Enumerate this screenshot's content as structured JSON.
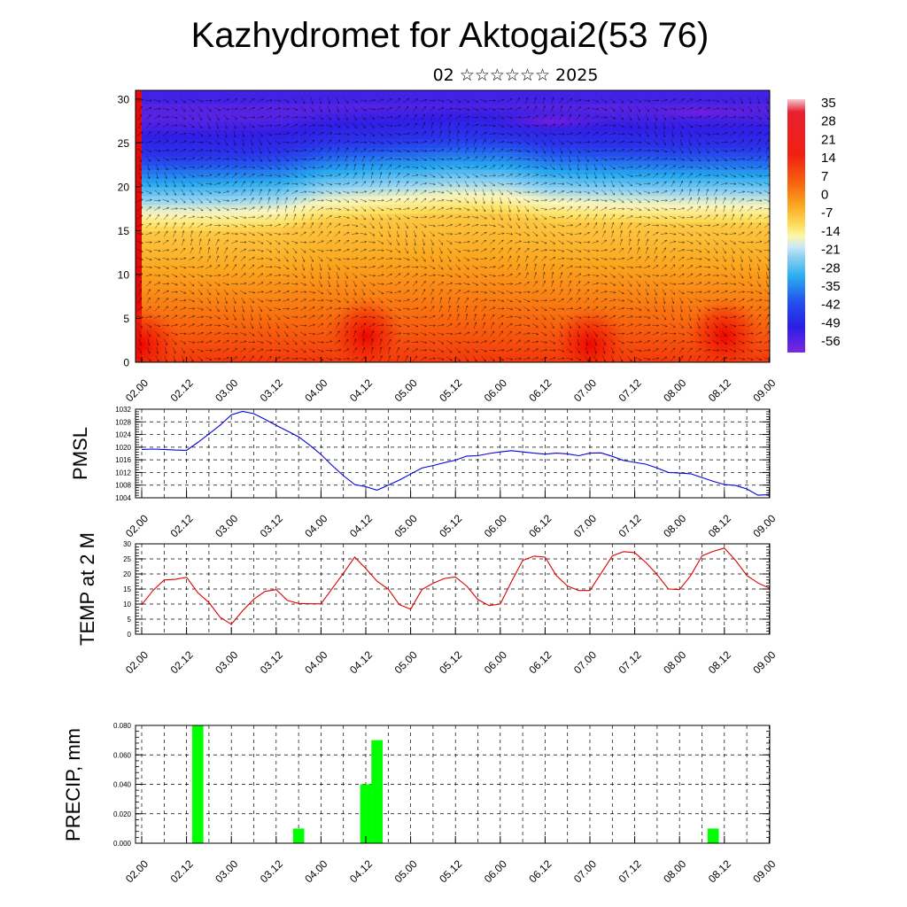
{
  "header": {
    "title": "Kazhydromet for Aktogai2(53 76)",
    "subtitle": "02 ☆☆☆☆☆☆ 2025"
  },
  "colors": {
    "pmsl_line": "#0000dd",
    "temp_line": "#dd0000",
    "precip_bar": "#00ff00",
    "section_cold": "#5a10d8",
    "section_warm": "#f01010"
  },
  "chart_data": [
    {
      "type": "heatmap",
      "title": "",
      "xlabel": "",
      "ylabel": "",
      "x_ticks": [
        "02.00",
        "02.12",
        "03.00",
        "03.12",
        "04.00",
        "04.12",
        "05.00",
        "05.12",
        "06.00",
        "06.12",
        "07.00",
        "07.12",
        "08.00",
        "08.12",
        "09.00"
      ],
      "y_ticks": [
        "0",
        "5",
        "10",
        "15",
        "20",
        "25",
        "30"
      ],
      "ylim": [
        0,
        31
      ],
      "colorbar_ticks": [
        "35",
        "28",
        "21",
        "14",
        "7",
        "0",
        "-7",
        "-14",
        "-21",
        "-28",
        "-35",
        "-42",
        "-49",
        "-56"
      ],
      "colorbar_range": [
        -60,
        38
      ],
      "freezing_level_by_time": [
        14.5,
        14.5,
        14.6,
        14.8,
        15.8,
        16.1,
        16.3,
        16.6,
        16.5,
        15.8,
        15.6,
        15.5,
        15.4,
        15.4,
        15.3
      ],
      "warm_cores": [
        {
          "time": "02.00",
          "height": 2,
          "temp": 21
        },
        {
          "time": "04.12",
          "height": 3,
          "temp": 24
        },
        {
          "time": "07.00",
          "height": 2,
          "temp": 23
        },
        {
          "time": "08.12",
          "height": 3,
          "temp": 24
        }
      ],
      "grid": false,
      "legend": "colorbar-right"
    },
    {
      "type": "line",
      "title": "",
      "ylabel": "PMSL",
      "x_ticks": [
        "02.00",
        "02.12",
        "03.00",
        "03.12",
        "04.00",
        "04.12",
        "05.00",
        "05.12",
        "06.00",
        "06.12",
        "07.00",
        "07.12",
        "08.00",
        "08.12",
        "09.00"
      ],
      "y_ticks": [
        "1004",
        "1008",
        "1012",
        "1016",
        "1020",
        "1024",
        "1028",
        "1032"
      ],
      "ylim": [
        1004,
        1032
      ],
      "x": [
        0,
        3,
        6,
        9,
        12,
        15,
        18,
        21,
        24,
        27,
        30,
        33,
        36,
        39,
        42,
        45,
        48,
        51,
        54,
        57,
        60,
        63,
        66,
        69,
        72,
        75,
        78,
        81,
        84,
        87,
        90,
        93,
        96,
        99,
        102,
        105,
        108,
        111,
        114,
        117,
        120,
        123,
        126,
        129,
        132,
        135,
        138,
        141,
        144,
        147,
        150,
        153,
        156,
        159,
        162,
        165,
        168
      ],
      "values": [
        1019.3,
        1019.4,
        1019.3,
        1019.1,
        1019.0,
        1021.5,
        1024.2,
        1027.0,
        1030.2,
        1031.3,
        1030.6,
        1028.8,
        1026.9,
        1025.1,
        1023.3,
        1020.6,
        1017.7,
        1014.2,
        1011.0,
        1008.2,
        1007.5,
        1006.4,
        1008.0,
        1009.6,
        1011.5,
        1013.4,
        1014.2,
        1015.1,
        1015.9,
        1017.2,
        1017.3,
        1018.0,
        1018.5,
        1018.9,
        1018.5,
        1018.1,
        1017.8,
        1018.1,
        1017.9,
        1017.3,
        1018.1,
        1018.2,
        1017.1,
        1015.8,
        1015.2,
        1014.6,
        1013.4,
        1012.0,
        1011.8,
        1011.6,
        1010.4,
        1009.2,
        1008.2,
        1007.9,
        1006.8,
        1004.8,
        1005.0
      ],
      "grid": true
    },
    {
      "type": "line",
      "title": "",
      "ylabel": "TEMP at 2 M",
      "x_ticks": [
        "02.00",
        "02.12",
        "03.00",
        "03.12",
        "04.00",
        "04.12",
        "05.00",
        "05.12",
        "06.00",
        "06.12",
        "07.00",
        "07.12",
        "08.00",
        "08.12",
        "09.00"
      ],
      "y_ticks": [
        "0",
        "5",
        "10",
        "15",
        "20",
        "25",
        "30"
      ],
      "ylim": [
        0,
        30
      ],
      "x": [
        0,
        3,
        6,
        9,
        12,
        15,
        18,
        21,
        24,
        27,
        30,
        33,
        36,
        39,
        42,
        45,
        48,
        51,
        54,
        57,
        60,
        63,
        66,
        69,
        72,
        75,
        78,
        81,
        84,
        87,
        90,
        93,
        96,
        99,
        102,
        105,
        108,
        111,
        114,
        117,
        120,
        123,
        126,
        129,
        132,
        135,
        138,
        141,
        144,
        147,
        150,
        153,
        156,
        159,
        162,
        165,
        168
      ],
      "values": [
        9.8,
        14.5,
        18.0,
        18.2,
        18.9,
        13.8,
        10.5,
        5.6,
        3.3,
        7.8,
        11.6,
        14.2,
        14.8,
        11.2,
        10.2,
        10.1,
        10.1,
        15.2,
        20.2,
        25.6,
        21.8,
        17.6,
        15.0,
        9.8,
        8.3,
        14.8,
        16.9,
        18.5,
        19.0,
        16.0,
        11.5,
        9.5,
        10.0,
        17.5,
        24.5,
        25.9,
        25.6,
        19.5,
        16.0,
        14.5,
        14.5,
        20.2,
        26.0,
        27.4,
        27.1,
        23.8,
        19.8,
        15.0,
        14.8,
        19.5,
        26.0,
        27.5,
        28.6,
        24.5,
        19.5,
        17.0,
        15.3
      ],
      "grid": true
    },
    {
      "type": "bar",
      "title": "",
      "ylabel": "PRECIP, mm",
      "x_ticks": [
        "02.00",
        "02.12",
        "03.00",
        "03.12",
        "04.00",
        "04.12",
        "05.00",
        "05.12",
        "06.00",
        "06.12",
        "07.00",
        "07.12",
        "08.00",
        "08.12",
        "09.00"
      ],
      "y_ticks": [
        "0.000",
        "0.020",
        "0.040",
        "0.060",
        "0.080"
      ],
      "ylim": [
        0,
        0.08
      ],
      "x": [
        15,
        42,
        60,
        63,
        153
      ],
      "values": [
        0.08,
        0.01,
        0.04,
        0.07,
        0.01
      ],
      "grid": true
    }
  ]
}
